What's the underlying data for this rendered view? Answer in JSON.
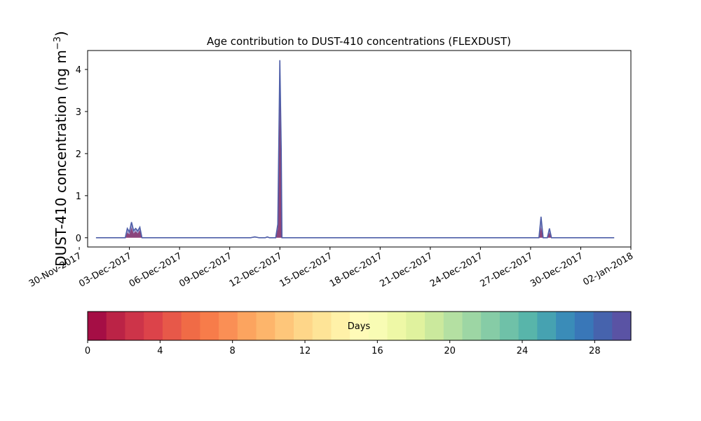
{
  "chart_data": {
    "type": "area",
    "title": "Age contribution to DUST-410 concentrations (FLEXDUST)",
    "ylabel_main": "DUST-410 concentration (ng m",
    "ylabel_sup": "−3",
    "ylabel_close": ")",
    "xlabel": "",
    "ylim": [
      -0.22,
      4.45
    ],
    "yticks": [
      0,
      1,
      2,
      3,
      4
    ],
    "xlim": [
      "2017-11-30T12:00",
      "2018-01-02T00:00"
    ],
    "xticks": [
      {
        "date": "2017-11-30",
        "label": "30-Nov-2017"
      },
      {
        "date": "2017-12-03",
        "label": "03-Dec-2017"
      },
      {
        "date": "2017-12-06",
        "label": "06-Dec-2017"
      },
      {
        "date": "2017-12-09",
        "label": "09-Dec-2017"
      },
      {
        "date": "2017-12-12",
        "label": "12-Dec-2017"
      },
      {
        "date": "2017-12-15",
        "label": "15-Dec-2017"
      },
      {
        "date": "2017-12-18",
        "label": "18-Dec-2017"
      },
      {
        "date": "2017-12-21",
        "label": "21-Dec-2017"
      },
      {
        "date": "2017-12-24",
        "label": "24-Dec-2017"
      },
      {
        "date": "2017-12-27",
        "label": "27-Dec-2017"
      },
      {
        "date": "2017-12-30",
        "label": "30-Dec-2017"
      },
      {
        "date": "2018-01-02",
        "label": "02-Jan-2018"
      }
    ],
    "grid": false,
    "series": [
      {
        "total": [
          {
            "t": "2017-12-01T00:00",
            "v": 0
          },
          {
            "t": "2017-12-02T18:00",
            "v": 0
          },
          {
            "t": "2017-12-02T21:00",
            "v": 0.22
          },
          {
            "t": "2017-12-03T00:00",
            "v": 0.14
          },
          {
            "t": "2017-12-03T03:00",
            "v": 0.37
          },
          {
            "t": "2017-12-03T06:00",
            "v": 0.17
          },
          {
            "t": "2017-12-03T09:00",
            "v": 0.22
          },
          {
            "t": "2017-12-03T12:00",
            "v": 0.16
          },
          {
            "t": "2017-12-03T15:00",
            "v": 0.25
          },
          {
            "t": "2017-12-03T18:00",
            "v": 0
          },
          {
            "t": "2017-12-10T06:00",
            "v": 0
          },
          {
            "t": "2017-12-10T12:00",
            "v": 0.02
          },
          {
            "t": "2017-12-10T18:00",
            "v": 0
          },
          {
            "t": "2017-12-11T03:00",
            "v": 0
          },
          {
            "t": "2017-12-11T06:00",
            "v": 0.02
          },
          {
            "t": "2017-12-11T09:00",
            "v": 0
          },
          {
            "t": "2017-12-11T18:00",
            "v": 0
          },
          {
            "t": "2017-12-11T21:00",
            "v": 0.32
          },
          {
            "t": "2017-12-12T00:00",
            "v": 4.22
          },
          {
            "t": "2017-12-12T02:00",
            "v": 2.1
          },
          {
            "t": "2017-12-12T03:00",
            "v": 0
          },
          {
            "t": "2017-12-27T12:00",
            "v": 0
          },
          {
            "t": "2017-12-27T15:00",
            "v": 0.5
          },
          {
            "t": "2017-12-27T18:00",
            "v": 0
          },
          {
            "t": "2017-12-28T00:00",
            "v": 0
          },
          {
            "t": "2017-12-28T03:00",
            "v": 0.22
          },
          {
            "t": "2017-12-28T06:00",
            "v": 0
          },
          {
            "t": "2018-01-01T00:00",
            "v": 0
          }
        ],
        "young": [
          {
            "t": "2017-12-01T00:00",
            "v": 0
          },
          {
            "t": "2017-12-02T18:00",
            "v": 0
          },
          {
            "t": "2017-12-02T21:00",
            "v": 0.12
          },
          {
            "t": "2017-12-03T00:00",
            "v": 0.08
          },
          {
            "t": "2017-12-03T03:00",
            "v": 0.24
          },
          {
            "t": "2017-12-03T06:00",
            "v": 0.1
          },
          {
            "t": "2017-12-03T09:00",
            "v": 0.15
          },
          {
            "t": "2017-12-03T12:00",
            "v": 0.1
          },
          {
            "t": "2017-12-03T15:00",
            "v": 0.18
          },
          {
            "t": "2017-12-03T18:00",
            "v": 0
          },
          {
            "t": "2017-12-11T18:00",
            "v": 0
          },
          {
            "t": "2017-12-11T21:00",
            "v": 0.2
          },
          {
            "t": "2017-12-12T00:00",
            "v": 3.3
          },
          {
            "t": "2017-12-12T02:00",
            "v": 1.5
          },
          {
            "t": "2017-12-12T03:00",
            "v": 0
          },
          {
            "t": "2017-12-27T12:00",
            "v": 0
          },
          {
            "t": "2017-12-27T15:00",
            "v": 0.25
          },
          {
            "t": "2017-12-27T18:00",
            "v": 0
          },
          {
            "t": "2017-12-28T00:00",
            "v": 0
          },
          {
            "t": "2017-12-28T03:00",
            "v": 0.12
          },
          {
            "t": "2017-12-28T06:00",
            "v": 0
          },
          {
            "t": "2018-01-01T00:00",
            "v": 0
          }
        ]
      }
    ],
    "line_color": "#4e5ea8",
    "fill_color": "#c9334c",
    "colorbar": {
      "label": "Days",
      "min": 0,
      "max": 30,
      "ticks": [
        0,
        4,
        8,
        12,
        16,
        20,
        24,
        28
      ],
      "colors": [
        "#a50e45",
        "#bb2346",
        "#cd3449",
        "#dc434a",
        "#e75849",
        "#f06b46",
        "#f77c4a",
        "#fa8f55",
        "#fca45f",
        "#fdb56b",
        "#fec67a",
        "#fed689",
        "#fee497",
        "#fff1a8",
        "#fffbb8",
        "#f8fcb4",
        "#eef8a6",
        "#e0f29e",
        "#cbe99d",
        "#b4e0a2",
        "#9dd6a4",
        "#86cca6",
        "#6fc1a8",
        "#58b5aa",
        "#46a2b1",
        "#3a8cb8",
        "#3977b8",
        "#4663ad",
        "#5a53a4"
      ]
    }
  }
}
